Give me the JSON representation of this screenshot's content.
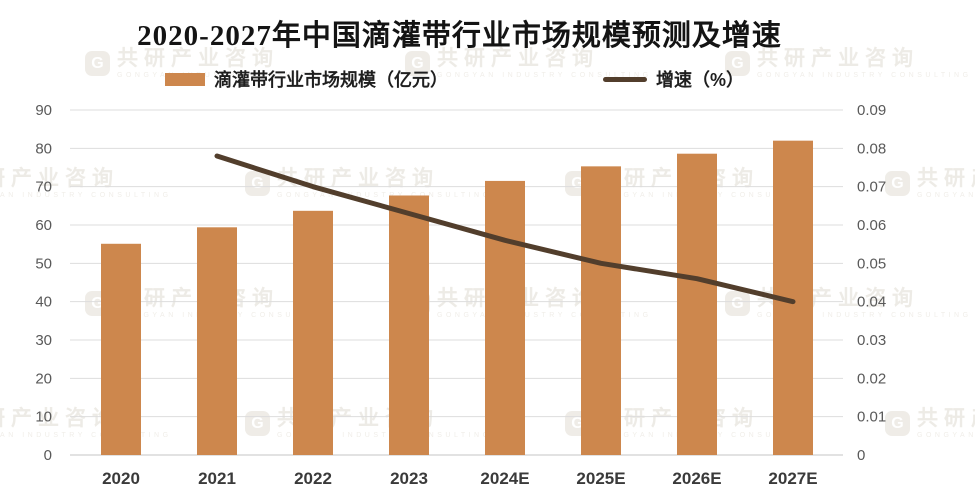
{
  "colors": {
    "bar": "#cd874d",
    "line": "#523e2c",
    "grid": "#dddddd",
    "axis_line": "#c6c6c6",
    "axis_text": "#595959",
    "xaxis_text": "#3a3a3a",
    "title_text": "#141414"
  },
  "watermark": {
    "logo": "G",
    "text": "共研产业咨询",
    "latin": "GONGYAN INDUSTRY CONSULTING"
  },
  "chart_data": {
    "type": "bar",
    "combo": "bar+line",
    "title": "2020-2027年中国滴灌带行业市场规模预测及增速",
    "categories": [
      "2020",
      "2021",
      "2022",
      "2023",
      "2024E",
      "2025E",
      "2026E",
      "2027E"
    ],
    "series": [
      {
        "name": "滴灌带行业市场规模（亿元）",
        "type": "bar",
        "axis": "left",
        "values": [
          55.1,
          59.4,
          63.7,
          67.7,
          71.5,
          75.3,
          78.6,
          82.0
        ]
      },
      {
        "name": "增速（%）",
        "type": "line",
        "axis": "right",
        "values": [
          null,
          0.078,
          0.07,
          0.063,
          0.056,
          0.05,
          0.046,
          0.04
        ]
      }
    ],
    "left_axis": {
      "min": 0,
      "max": 90,
      "tick_labels": [
        "0",
        "10",
        "20",
        "30",
        "40",
        "50",
        "60",
        "70",
        "80",
        "90"
      ]
    },
    "right_axis": {
      "min": 0,
      "max": 0.09,
      "tick_labels": [
        "0",
        "0.01",
        "0.02",
        "0.03",
        "0.04",
        "0.05",
        "0.06",
        "0.07",
        "0.08",
        "0.09"
      ]
    },
    "grid": true,
    "legend_position": "top"
  }
}
